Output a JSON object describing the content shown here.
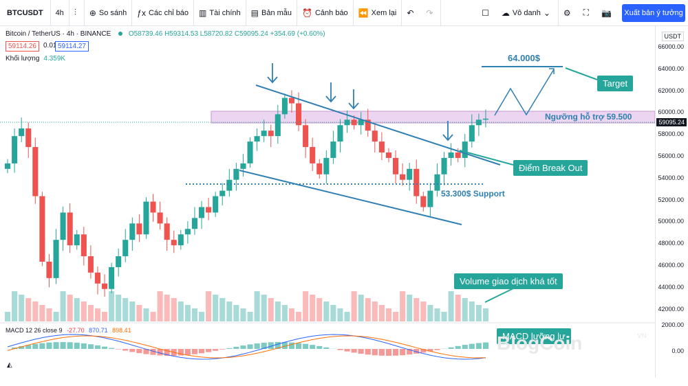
{
  "toolbar": {
    "symbol": "BTCUSDT",
    "interval": "4h",
    "compare": "So sánh",
    "indicators": "Các chỉ báo",
    "financials": "Tài chính",
    "templates": "Bản mẫu",
    "alerts": "Cảnh báo",
    "replay": "Xem lại",
    "unnamed": "Vô danh",
    "publish": "Xuất bản ý tưởng"
  },
  "legend": {
    "pair": "Bitcoin / TetherUS",
    "interval": "4h",
    "exchange": "BINANCE",
    "ohlc": "O58739.46 H59314.53 L58720.82 C59095.24 +354.69 (+0.60%)",
    "bid": "59114.26",
    "spread": "0.01",
    "ask": "59114.27",
    "volume_label": "Khối lượng",
    "volume_value": "4.359K"
  },
  "macd": {
    "label": "MACD 12 26 close 9",
    "hist": "-27.70",
    "macd": "870.71",
    "signal": "898.41"
  },
  "axis": {
    "currency": "USDT",
    "current_price": "59095.24",
    "ticks": [
      "66000.00",
      "64000.00",
      "62000.00",
      "60000.00",
      "58000.00",
      "56000.00",
      "54000.00",
      "52000.00",
      "50000.00",
      "48000.00",
      "46000.00",
      "44000.00",
      "42000.00"
    ],
    "macd_ticks": [
      "2000.00",
      "0.00"
    ]
  },
  "annotations": {
    "target_price": "64.000$",
    "target": "Target",
    "resistance": "Ngưỡng hỗ trợ 59.500",
    "breakout": "Điểm Break Out",
    "support": "53.300$ Support",
    "volume": "Volume giao dịch khá tốt",
    "macd_note": "MACD lưỡng lự"
  },
  "watermark": {
    "text": "BlogCoin",
    "sub": "VN"
  },
  "colors": {
    "up": "#26a69a",
    "down": "#ef5350",
    "line": "#2f7fb3",
    "zone": "#e3c3e9"
  },
  "chart_data": {
    "type": "candlestick",
    "symbol": "BTCUSDT",
    "interval": "4h",
    "ylim": [
      41000,
      67000
    ],
    "closes": [
      55000,
      57500,
      58200,
      56500,
      52000,
      46000,
      44500,
      48000,
      50500,
      47500,
      48500,
      46500,
      45000,
      44000,
      43500,
      45500,
      46500,
      48000,
      49500,
      48500,
      51500,
      50500,
      49500,
      48000,
      47500,
      48500,
      49000,
      50000,
      51000,
      50500,
      52000,
      52500,
      53500,
      54500,
      55000,
      57000,
      57500,
      58000,
      57500,
      59500,
      61000,
      60500,
      58500,
      56500,
      55000,
      54000,
      55500,
      57000,
      58500,
      59000,
      58500,
      59000,
      58000,
      57000,
      56000,
      55500,
      54000,
      53500,
      54500,
      52000,
      51000,
      52500,
      54000,
      55500,
      56000,
      55500,
      57000,
      58500,
      59000,
      59095
    ]
  }
}
